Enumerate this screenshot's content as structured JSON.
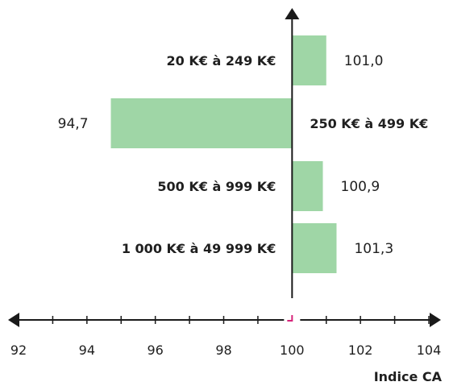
{
  "chart_data": {
    "type": "bar",
    "orientation": "horizontal",
    "baseline": 100,
    "categories": [
      "20 K€ à 249 K€",
      "250 K€ à 499 K€",
      "500 K€ à 999 K€",
      "1 000 K€ à 49 999 K€"
    ],
    "values": [
      101.0,
      94.7,
      100.9,
      101.3
    ],
    "value_labels": [
      "101,0",
      "94,7",
      "100,9",
      "101,3"
    ],
    "xlim": [
      92,
      104
    ],
    "xticks": [
      92,
      94,
      96,
      98,
      100,
      102,
      104
    ],
    "xlabel": "Indice CA",
    "title": "",
    "ylabel": "",
    "grid": false,
    "legend": "none",
    "colors": {
      "bar": "#9fd6a6",
      "axis": "#1a1a1a",
      "zero_marker": "#d6247a"
    }
  }
}
